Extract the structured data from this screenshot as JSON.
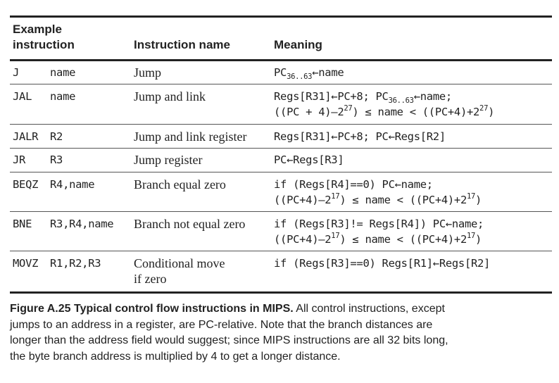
{
  "table": {
    "headers": {
      "example_line1": "Example",
      "example_line2": "instruction",
      "name": "Instruction name",
      "meaning": "Meaning"
    },
    "rows": [
      {
        "opcode": "J",
        "operands": "name",
        "name": "Jump"
      },
      {
        "opcode": "JAL",
        "operands": "name",
        "name": "Jump and link"
      },
      {
        "opcode": "JALR",
        "operands": "R2",
        "name": "Jump and link register"
      },
      {
        "opcode": "JR",
        "operands": "R3",
        "name": "Jump register"
      },
      {
        "opcode": "BEQZ",
        "operands": "R4,name",
        "name": "Branch equal zero"
      },
      {
        "opcode": "BNE",
        "operands": "R3,R4,name",
        "name": "Branch not equal zero"
      },
      {
        "opcode": "MOVZ",
        "operands": "R1,R2,R3",
        "name_line1": "Conditional move",
        "name_line2": "if zero"
      }
    ],
    "meanings": {
      "j": {
        "a": "PC",
        "sub": "36..63",
        "b": "←name"
      },
      "jal": {
        "l1a": "Regs[R31]←PC+8; PC",
        "l1sub": "36..63",
        "l1b": "←name;",
        "l2a": "((PC + 4)–2",
        "l2sup1": "27",
        "l2b": ") ≤ name < ((PC+4)+2",
        "l2sup2": "27",
        "l2c": ")"
      },
      "jalr": "Regs[R31]←PC+8; PC←Regs[R2]",
      "jr": "PC←Regs[R3]",
      "beqz": {
        "l1": "if (Regs[R4]==0) PC←name;",
        "l2a": "((PC+4)–2",
        "l2sup1": "17",
        "l2b": ") ≤ name < ((PC+4)+2",
        "l2sup2": "17",
        "l2c": ")"
      },
      "bne": {
        "l1": "if (Regs[R3]!= Regs[R4]) PC←name;",
        "l2a": "((PC+4)–2",
        "l2sup1": "17",
        "l2b": ") ≤ name < ((PC+4)+2",
        "l2sup2": "17",
        "l2c": ")"
      },
      "movz": "if (Regs[R3]==0) Regs[R1]←Regs[R2]"
    }
  },
  "caption": {
    "label": "Figure A.25  Typical control flow instructions in MIPS.",
    "line1_rest": " All control instructions, except",
    "line2": "jumps to an address in a register, are PC-relative. Note that the branch distances are",
    "line3": "longer than the address field would suggest; since MIPS instructions are all 32 bits long,",
    "line4": "the byte branch address is multiplied by 4 to get a longer distance."
  }
}
